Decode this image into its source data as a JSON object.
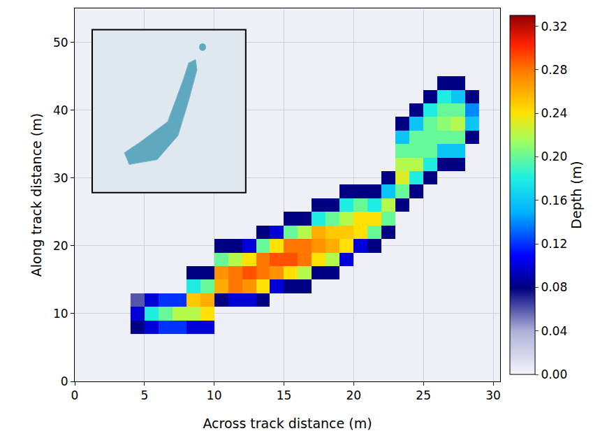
{
  "chart_data": {
    "type": "heatmap",
    "x_label": "Across track distance (m)",
    "y_label": "Along track distance (m)",
    "colorbar_label": "Depth (m)",
    "xlim": [
      0,
      30.5
    ],
    "ylim": [
      0,
      55
    ],
    "xticks": [
      0,
      5,
      10,
      15,
      20,
      25,
      30
    ],
    "yticks": [
      0,
      10,
      20,
      30,
      40,
      50
    ],
    "grid": true,
    "x": [
      4.5,
      5.5,
      6.5,
      7.5,
      8.5,
      9.5,
      10.5,
      11.5,
      12.5,
      13.5,
      14.5,
      15.5,
      16.5,
      17.5,
      18.5,
      19.5,
      20.5,
      21.5,
      22.5,
      23.5,
      24.5,
      25.5,
      26.5,
      27.5,
      28.5
    ],
    "y": [
      8,
      10,
      12,
      14,
      16,
      18,
      20,
      22,
      24,
      26,
      28,
      30,
      32,
      34,
      36,
      38,
      40,
      42,
      44
    ],
    "z": [
      [
        0.08,
        0.1,
        0.12,
        0.12,
        0.1,
        0.1,
        null,
        null,
        null,
        null,
        null,
        null,
        null,
        null,
        null,
        null,
        null,
        null,
        null,
        null,
        null,
        null,
        null,
        null,
        null
      ],
      [
        0.1,
        0.18,
        0.2,
        0.22,
        0.22,
        0.24,
        null,
        null,
        null,
        null,
        null,
        null,
        null,
        null,
        null,
        null,
        null,
        null,
        null,
        null,
        null,
        null,
        null,
        null,
        null
      ],
      [
        0.06,
        0.1,
        0.12,
        0.12,
        0.25,
        0.26,
        0.08,
        0.1,
        0.1,
        0.08,
        null,
        null,
        null,
        null,
        null,
        null,
        null,
        null,
        null,
        null,
        null,
        null,
        null,
        null,
        null
      ],
      [
        null,
        null,
        null,
        null,
        0.18,
        0.2,
        0.26,
        0.28,
        0.27,
        0.24,
        0.1,
        0.08,
        0.08,
        null,
        null,
        null,
        null,
        null,
        null,
        null,
        null,
        null,
        null,
        null,
        null
      ],
      [
        null,
        null,
        null,
        null,
        0.08,
        0.08,
        0.27,
        0.28,
        0.29,
        0.28,
        0.27,
        0.24,
        0.22,
        0.08,
        0.08,
        null,
        null,
        null,
        null,
        null,
        null,
        null,
        null,
        null,
        null
      ],
      [
        null,
        null,
        null,
        null,
        null,
        null,
        0.2,
        0.22,
        0.24,
        0.28,
        0.29,
        0.29,
        0.28,
        0.24,
        0.22,
        0.1,
        null,
        null,
        null,
        null,
        null,
        null,
        null,
        null,
        null
      ],
      [
        null,
        null,
        null,
        null,
        null,
        null,
        0.08,
        0.08,
        0.1,
        0.2,
        0.24,
        0.28,
        0.28,
        0.27,
        0.26,
        0.24,
        0.1,
        0.08,
        null,
        null,
        null,
        null,
        null,
        null,
        null
      ],
      [
        null,
        null,
        null,
        null,
        null,
        null,
        null,
        null,
        null,
        0.08,
        0.1,
        0.2,
        0.22,
        0.26,
        0.25,
        0.25,
        0.24,
        0.2,
        0.08,
        null,
        null,
        null,
        null,
        null,
        null
      ],
      [
        null,
        null,
        null,
        null,
        null,
        null,
        null,
        null,
        null,
        null,
        null,
        0.08,
        0.08,
        0.18,
        0.2,
        0.22,
        0.24,
        0.24,
        0.2,
        null,
        null,
        null,
        null,
        null,
        null
      ],
      [
        null,
        null,
        null,
        null,
        null,
        null,
        null,
        null,
        null,
        null,
        null,
        null,
        null,
        0.08,
        0.08,
        0.18,
        0.2,
        0.18,
        0.22,
        0.08,
        null,
        null,
        null,
        null,
        null
      ],
      [
        null,
        null,
        null,
        null,
        null,
        null,
        null,
        null,
        null,
        null,
        null,
        null,
        null,
        null,
        null,
        0.08,
        0.08,
        0.08,
        0.16,
        0.2,
        0.08,
        null,
        null,
        null,
        null
      ],
      [
        null,
        null,
        null,
        null,
        null,
        null,
        null,
        null,
        null,
        null,
        null,
        null,
        null,
        null,
        null,
        null,
        null,
        null,
        0.08,
        0.23,
        0.18,
        0.08,
        null,
        null,
        null
      ],
      [
        null,
        null,
        null,
        null,
        null,
        null,
        null,
        null,
        null,
        null,
        null,
        null,
        null,
        null,
        null,
        null,
        null,
        null,
        null,
        0.22,
        0.22,
        0.18,
        0.08,
        0.08,
        null
      ],
      [
        null,
        null,
        null,
        null,
        null,
        null,
        null,
        null,
        null,
        null,
        null,
        null,
        null,
        null,
        null,
        null,
        null,
        null,
        null,
        0.2,
        0.2,
        0.2,
        0.16,
        0.16,
        null
      ],
      [
        null,
        null,
        null,
        null,
        null,
        null,
        null,
        null,
        null,
        null,
        null,
        null,
        null,
        null,
        null,
        null,
        null,
        null,
        null,
        0.16,
        0.2,
        0.2,
        0.2,
        0.2,
        0.08
      ],
      [
        null,
        null,
        null,
        null,
        null,
        null,
        null,
        null,
        null,
        null,
        null,
        null,
        null,
        null,
        null,
        null,
        null,
        null,
        null,
        0.08,
        0.16,
        0.2,
        0.21,
        0.22,
        0.16
      ],
      [
        null,
        null,
        null,
        null,
        null,
        null,
        null,
        null,
        null,
        null,
        null,
        null,
        null,
        null,
        null,
        null,
        null,
        null,
        null,
        null,
        0.08,
        0.18,
        0.2,
        0.2,
        0.14
      ],
      [
        null,
        null,
        null,
        null,
        null,
        null,
        null,
        null,
        null,
        null,
        null,
        null,
        null,
        null,
        null,
        null,
        null,
        null,
        null,
        null,
        null,
        0.08,
        0.18,
        0.16,
        0.08
      ],
      [
        null,
        null,
        null,
        null,
        null,
        null,
        null,
        null,
        null,
        null,
        null,
        null,
        null,
        null,
        null,
        null,
        null,
        null,
        null,
        null,
        null,
        null,
        0.08,
        0.08,
        null
      ]
    ],
    "zlim": [
      0,
      0.33
    ],
    "zticks": [
      {
        "value": 0,
        "label": "0.00"
      },
      {
        "value": 0.04,
        "label": "0.04"
      },
      {
        "value": 0.08,
        "label": "0.08"
      },
      {
        "value": 0.12,
        "label": "0.12"
      },
      {
        "value": 0.16,
        "label": "0.16"
      },
      {
        "value": 0.2,
        "label": "0.20"
      },
      {
        "value": 0.24,
        "label": "0.24"
      },
      {
        "value": 0.28,
        "label": "0.28"
      },
      {
        "value": 0.32,
        "label": "0.32"
      }
    ]
  }
}
